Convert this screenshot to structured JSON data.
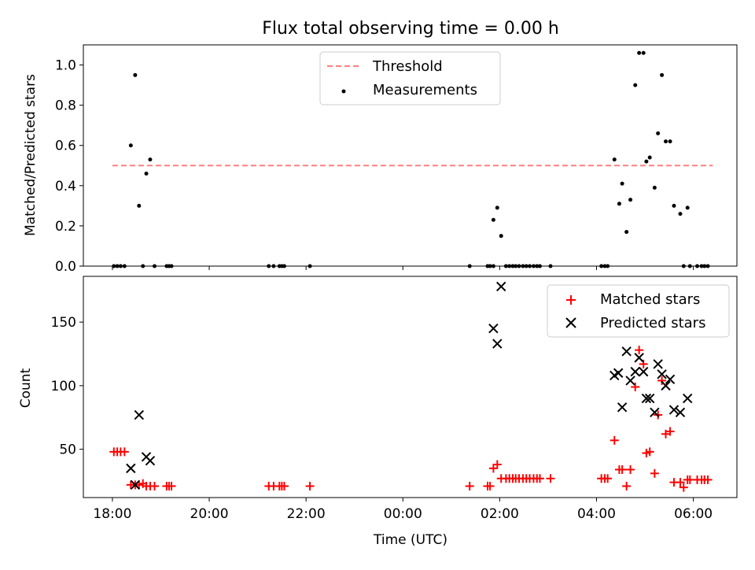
{
  "title": "Flux total observing time = 0.00 h",
  "colors": {
    "threshold": "#ff7f7f",
    "measurement": "#000000",
    "matched": "#ff0000",
    "predicted": "#000000"
  },
  "chart_data": [
    {
      "type": "scatter",
      "ylabel": "Matched/Predicted stars",
      "ylim": [
        0,
        1.1
      ],
      "yticks": [
        "0.0",
        "0.2",
        "0.4",
        "0.6",
        "0.8",
        "1.0"
      ],
      "xlim": [
        -0.6,
        12.9
      ],
      "legend_position": "top-center",
      "threshold": {
        "name": "Threshold",
        "value": 0.5,
        "x_range": [
          0,
          12.4
        ],
        "style": "dashed"
      },
      "series": [
        {
          "name": "Measurements",
          "points": [
            [
              0.03,
              0
            ],
            [
              0.1,
              0
            ],
            [
              0.17,
              0
            ],
            [
              0.25,
              0
            ],
            [
              0.38,
              0.6
            ],
            [
              0.47,
              0.95
            ],
            [
              0.55,
              0.3
            ],
            [
              0.63,
              0
            ],
            [
              0.7,
              0.46
            ],
            [
              0.78,
              0.53
            ],
            [
              0.87,
              0
            ],
            [
              1.12,
              0
            ],
            [
              1.17,
              0
            ],
            [
              1.22,
              0
            ],
            [
              3.23,
              0
            ],
            [
              3.33,
              0
            ],
            [
              3.45,
              0
            ],
            [
              3.5,
              0
            ],
            [
              3.55,
              0
            ],
            [
              4.08,
              0
            ],
            [
              7.38,
              0
            ],
            [
              7.75,
              0
            ],
            [
              7.8,
              0
            ],
            [
              7.87,
              0
            ],
            [
              7.87,
              0.23
            ],
            [
              7.95,
              0.29
            ],
            [
              8.03,
              0.15
            ],
            [
              8.13,
              0
            ],
            [
              8.2,
              0
            ],
            [
              8.27,
              0
            ],
            [
              8.33,
              0
            ],
            [
              8.4,
              0
            ],
            [
              8.48,
              0
            ],
            [
              8.55,
              0
            ],
            [
              8.62,
              0
            ],
            [
              8.7,
              0
            ],
            [
              8.77,
              0
            ],
            [
              8.83,
              0
            ],
            [
              9.05,
              0
            ],
            [
              10.1,
              0
            ],
            [
              10.17,
              0
            ],
            [
              10.23,
              0
            ],
            [
              10.37,
              0.53
            ],
            [
              10.47,
              0.31
            ],
            [
              10.53,
              0.41
            ],
            [
              10.62,
              0.17
            ],
            [
              10.7,
              0.33
            ],
            [
              10.8,
              0.9
            ],
            [
              10.88,
              1.06
            ],
            [
              10.97,
              1.06
            ],
            [
              11.03,
              0.52
            ],
            [
              11.1,
              0.54
            ],
            [
              11.2,
              0.39
            ],
            [
              11.27,
              0.66
            ],
            [
              11.35,
              0.95
            ],
            [
              11.43,
              0.62
            ],
            [
              11.52,
              0.62
            ],
            [
              11.6,
              0.3
            ],
            [
              11.73,
              0.26
            ],
            [
              11.8,
              0
            ],
            [
              11.88,
              0.29
            ],
            [
              11.93,
              0
            ],
            [
              12.08,
              0
            ],
            [
              12.17,
              0
            ],
            [
              12.23,
              0
            ],
            [
              12.3,
              0
            ]
          ]
        }
      ]
    },
    {
      "type": "scatter",
      "xlabel": "Time (UTC)",
      "ylabel": "Count",
      "ylim": [
        12,
        186
      ],
      "yticks": [
        "50",
        "100",
        "150"
      ],
      "xlim": [
        -0.6,
        12.9
      ],
      "xticks": [
        "18:00",
        "20:00",
        "22:00",
        "00:00",
        "02:00",
        "04:00",
        "06:00"
      ],
      "legend_position": "top-right",
      "series": [
        {
          "name": "Matched stars",
          "marker": "+",
          "points": [
            [
              0.03,
              48
            ],
            [
              0.1,
              48
            ],
            [
              0.17,
              48
            ],
            [
              0.25,
              48
            ],
            [
              0.38,
              22
            ],
            [
              0.47,
              22
            ],
            [
              0.55,
              22
            ],
            [
              0.63,
              23
            ],
            [
              0.7,
              21
            ],
            [
              0.78,
              21
            ],
            [
              0.87,
              21
            ],
            [
              1.12,
              21
            ],
            [
              1.17,
              21
            ],
            [
              1.22,
              21
            ],
            [
              3.23,
              21
            ],
            [
              3.33,
              21
            ],
            [
              3.45,
              21
            ],
            [
              3.5,
              21
            ],
            [
              3.55,
              21
            ],
            [
              4.08,
              21
            ],
            [
              7.38,
              21
            ],
            [
              7.75,
              21
            ],
            [
              7.8,
              21
            ],
            [
              7.87,
              35
            ],
            [
              7.95,
              38
            ],
            [
              8.03,
              27
            ],
            [
              8.13,
              27
            ],
            [
              8.2,
              27
            ],
            [
              8.27,
              27
            ],
            [
              8.33,
              27
            ],
            [
              8.4,
              27
            ],
            [
              8.48,
              27
            ],
            [
              8.55,
              27
            ],
            [
              8.62,
              27
            ],
            [
              8.7,
              27
            ],
            [
              8.77,
              27
            ],
            [
              8.83,
              27
            ],
            [
              9.05,
              27
            ],
            [
              10.1,
              27
            ],
            [
              10.17,
              27
            ],
            [
              10.23,
              27
            ],
            [
              10.37,
              57
            ],
            [
              10.47,
              34
            ],
            [
              10.53,
              34
            ],
            [
              10.62,
              21
            ],
            [
              10.7,
              34
            ],
            [
              10.8,
              99
            ],
            [
              10.88,
              128
            ],
            [
              10.97,
              117
            ],
            [
              11.03,
              47
            ],
            [
              11.1,
              48
            ],
            [
              11.2,
              31
            ],
            [
              11.27,
              77
            ],
            [
              11.35,
              104
            ],
            [
              11.43,
              62
            ],
            [
              11.52,
              64
            ],
            [
              11.6,
              24
            ],
            [
              11.73,
              24
            ],
            [
              11.8,
              20
            ],
            [
              11.88,
              26
            ],
            [
              11.93,
              26
            ],
            [
              12.08,
              26
            ],
            [
              12.17,
              26
            ],
            [
              12.23,
              26
            ],
            [
              12.3,
              26
            ]
          ]
        },
        {
          "name": "Predicted stars",
          "marker": "x",
          "points": [
            [
              0.38,
              35
            ],
            [
              0.47,
              22
            ],
            [
              0.55,
              77
            ],
            [
              0.7,
              44
            ],
            [
              0.78,
              41
            ],
            [
              7.87,
              145
            ],
            [
              7.95,
              133
            ],
            [
              8.03,
              178
            ],
            [
              10.37,
              108
            ],
            [
              10.45,
              110
            ],
            [
              10.53,
              83
            ],
            [
              10.62,
              127
            ],
            [
              10.7,
              104
            ],
            [
              10.8,
              111
            ],
            [
              10.88,
              122
            ],
            [
              10.97,
              111
            ],
            [
              11.03,
              90
            ],
            [
              11.1,
              90
            ],
            [
              11.2,
              79
            ],
            [
              11.27,
              117
            ],
            [
              11.35,
              109
            ],
            [
              11.43,
              100
            ],
            [
              11.52,
              105
            ],
            [
              11.6,
              81
            ],
            [
              11.73,
              79
            ],
            [
              11.88,
              90
            ]
          ]
        }
      ]
    }
  ]
}
